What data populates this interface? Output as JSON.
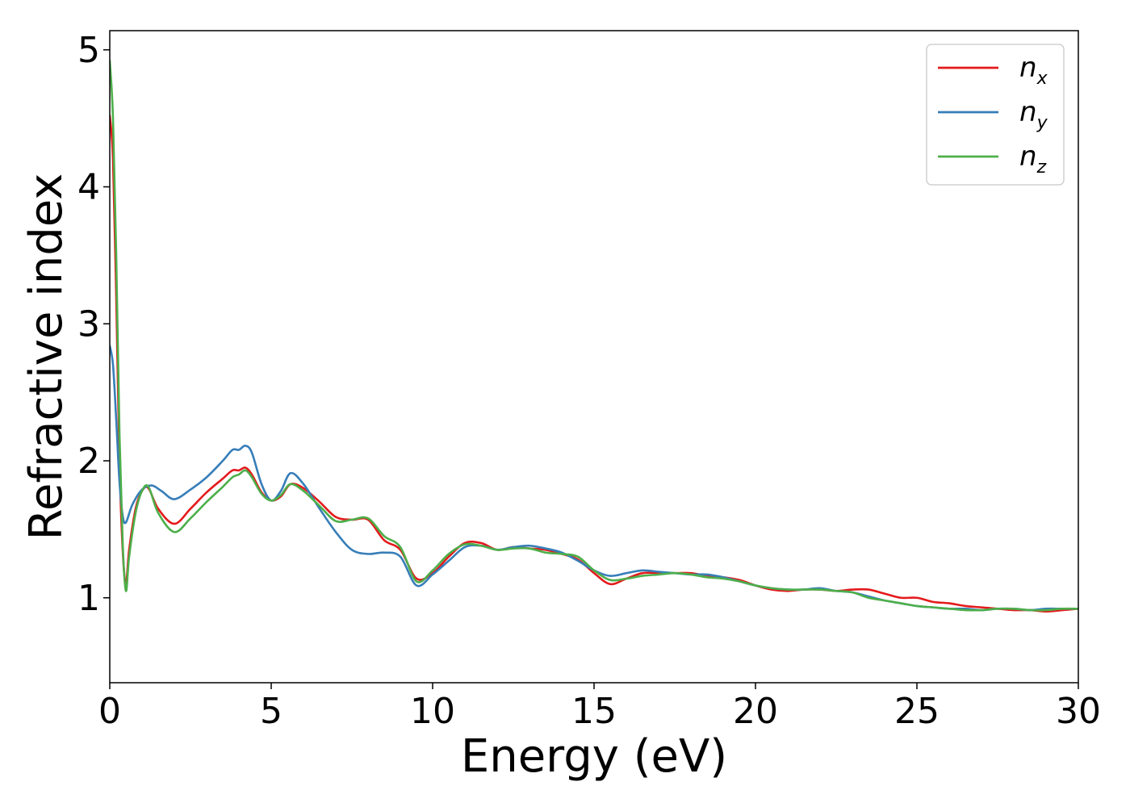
{
  "chart_data": {
    "type": "line",
    "title": "",
    "xlabel": "Energy (eV)",
    "ylabel": "Refractive index",
    "xlim": [
      0,
      30
    ],
    "ylim": [
      0.38,
      5.14
    ],
    "xticks": [
      0,
      5,
      10,
      15,
      20,
      25,
      30
    ],
    "xtick_labels": [
      "0",
      "5",
      "10",
      "15",
      "20",
      "25",
      "30"
    ],
    "yticks": [
      1,
      2,
      3,
      4,
      5
    ],
    "ytick_labels": [
      "1",
      "2",
      "3",
      "4",
      "5"
    ],
    "grid": false,
    "legend": {
      "placement": "top-right",
      "entries": [
        {
          "base": "n",
          "sub": "x",
          "color": "#e41a1c"
        },
        {
          "base": "n",
          "sub": "y",
          "color": "#377eb8"
        },
        {
          "base": "n",
          "sub": "z",
          "color": "#4daf4a"
        }
      ]
    },
    "series": [
      {
        "name": "n_x",
        "color": "#e41a1c",
        "x": [
          0,
          0.1,
          0.2,
          0.3,
          0.4,
          0.5,
          0.6,
          0.8,
          1.0,
          1.2,
          1.5,
          2.0,
          2.5,
          3.0,
          3.5,
          3.8,
          4.0,
          4.2,
          4.4,
          4.7,
          5.0,
          5.3,
          5.6,
          6.0,
          6.5,
          7.0,
          7.5,
          8.0,
          8.5,
          9.0,
          9.5,
          10.0,
          10.5,
          11.0,
          11.5,
          12.0,
          12.5,
          13.0,
          13.5,
          14.0,
          14.5,
          15.0,
          15.5,
          16.0,
          16.5,
          17.0,
          17.5,
          18.0,
          18.5,
          19.0,
          19.5,
          20.0,
          20.5,
          21.0,
          21.5,
          22.0,
          22.5,
          23.0,
          23.5,
          24.0,
          24.5,
          25.0,
          25.5,
          26.0,
          26.5,
          27.0,
          27.5,
          28.0,
          28.5,
          29.0,
          29.5,
          30.0
        ],
        "y": [
          4.52,
          4.2,
          3.2,
          2.0,
          1.35,
          1.1,
          1.35,
          1.65,
          1.78,
          1.8,
          1.65,
          1.54,
          1.65,
          1.77,
          1.87,
          1.93,
          1.93,
          1.95,
          1.9,
          1.77,
          1.71,
          1.74,
          1.83,
          1.8,
          1.7,
          1.59,
          1.57,
          1.57,
          1.42,
          1.35,
          1.14,
          1.18,
          1.3,
          1.4,
          1.4,
          1.35,
          1.37,
          1.36,
          1.35,
          1.32,
          1.28,
          1.18,
          1.1,
          1.14,
          1.18,
          1.18,
          1.18,
          1.18,
          1.16,
          1.15,
          1.13,
          1.09,
          1.06,
          1.05,
          1.06,
          1.06,
          1.05,
          1.06,
          1.06,
          1.03,
          1.0,
          1.0,
          0.97,
          0.96,
          0.94,
          0.93,
          0.92,
          0.91,
          0.91,
          0.9,
          0.91,
          0.92
        ]
      },
      {
        "name": "n_y",
        "color": "#377eb8",
        "x": [
          0,
          0.1,
          0.2,
          0.3,
          0.4,
          0.5,
          0.7,
          1.0,
          1.3,
          1.6,
          2.0,
          2.5,
          3.0,
          3.5,
          3.8,
          4.0,
          4.2,
          4.4,
          4.7,
          5.0,
          5.3,
          5.6,
          6.0,
          6.5,
          7.0,
          7.5,
          8.0,
          8.5,
          9.0,
          9.5,
          10.0,
          10.5,
          11.0,
          11.5,
          12.0,
          12.5,
          13.0,
          13.5,
          14.0,
          14.5,
          15.0,
          15.5,
          16.0,
          16.5,
          17.0,
          17.5,
          18.0,
          18.5,
          19.0,
          19.5,
          20.0,
          20.5,
          21.0,
          21.5,
          22.0,
          22.5,
          23.0,
          23.5,
          24.0,
          24.5,
          25.0,
          25.5,
          26.0,
          26.5,
          27.0,
          27.5,
          28.0,
          28.5,
          29.0,
          29.5,
          30.0
        ],
        "y": [
          2.84,
          2.7,
          2.3,
          1.85,
          1.6,
          1.55,
          1.68,
          1.79,
          1.82,
          1.78,
          1.72,
          1.79,
          1.88,
          2.0,
          2.08,
          2.08,
          2.11,
          2.06,
          1.83,
          1.71,
          1.78,
          1.91,
          1.83,
          1.65,
          1.48,
          1.35,
          1.32,
          1.33,
          1.3,
          1.09,
          1.17,
          1.27,
          1.37,
          1.38,
          1.35,
          1.37,
          1.38,
          1.36,
          1.33,
          1.27,
          1.2,
          1.16,
          1.18,
          1.2,
          1.19,
          1.18,
          1.17,
          1.17,
          1.15,
          1.12,
          1.09,
          1.07,
          1.06,
          1.06,
          1.07,
          1.05,
          1.04,
          1.01,
          0.98,
          0.96,
          0.94,
          0.93,
          0.92,
          0.92,
          0.91,
          0.92,
          0.92,
          0.91,
          0.92,
          0.92,
          0.92
        ]
      },
      {
        "name": "n_z",
        "color": "#4daf4a",
        "x": [
          0,
          0.1,
          0.2,
          0.3,
          0.4,
          0.5,
          0.6,
          0.8,
          1.0,
          1.2,
          1.5,
          2.0,
          2.5,
          3.0,
          3.5,
          3.8,
          4.0,
          4.2,
          4.4,
          4.7,
          5.0,
          5.3,
          5.6,
          6.0,
          6.5,
          7.0,
          7.5,
          8.0,
          8.5,
          9.0,
          9.5,
          10.0,
          10.5,
          11.0,
          11.5,
          12.0,
          12.5,
          13.0,
          13.5,
          14.0,
          14.5,
          15.0,
          15.5,
          16.0,
          16.5,
          17.0,
          17.5,
          18.0,
          18.5,
          19.0,
          19.5,
          20.0,
          20.5,
          21.0,
          21.5,
          22.0,
          22.5,
          23.0,
          23.5,
          24.0,
          24.5,
          25.0,
          25.5,
          26.0,
          26.5,
          27.0,
          27.5,
          28.0,
          28.5,
          29.0,
          29.5,
          30.0
        ],
        "y": [
          4.92,
          4.5,
          3.5,
          2.2,
          1.4,
          1.05,
          1.3,
          1.62,
          1.78,
          1.81,
          1.62,
          1.48,
          1.58,
          1.7,
          1.81,
          1.88,
          1.9,
          1.93,
          1.88,
          1.76,
          1.71,
          1.75,
          1.83,
          1.78,
          1.67,
          1.56,
          1.57,
          1.58,
          1.45,
          1.37,
          1.12,
          1.2,
          1.32,
          1.39,
          1.38,
          1.35,
          1.36,
          1.36,
          1.33,
          1.32,
          1.3,
          1.2,
          1.13,
          1.14,
          1.16,
          1.17,
          1.18,
          1.17,
          1.15,
          1.14,
          1.12,
          1.09,
          1.07,
          1.06,
          1.06,
          1.06,
          1.05,
          1.04,
          1.0,
          0.98,
          0.96,
          0.94,
          0.93,
          0.92,
          0.91,
          0.91,
          0.92,
          0.92,
          0.91,
          0.91,
          0.92,
          0.92
        ]
      }
    ]
  }
}
